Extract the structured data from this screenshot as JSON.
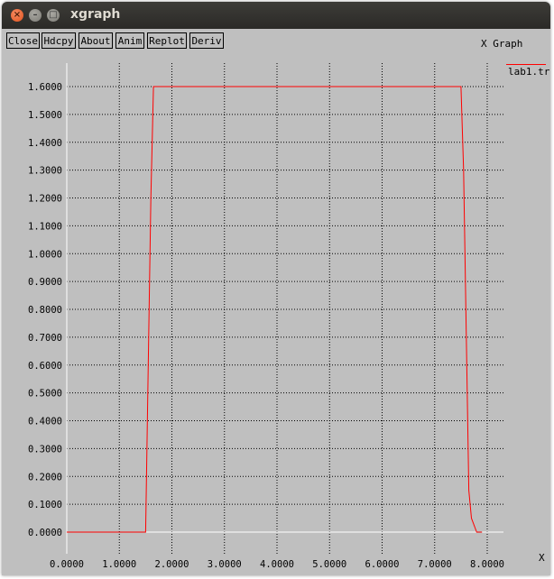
{
  "window": {
    "title": "xgraph",
    "close_glyph": "×",
    "min_glyph": "–",
    "max_glyph": "□"
  },
  "toolbar": {
    "buttons": [
      "Close",
      "Hdcpy",
      "About",
      "Anim",
      "Replot",
      "Deriv"
    ]
  },
  "graph": {
    "title": "X Graph",
    "x_axis_name": "X",
    "legend": [
      {
        "name": "lab1.tr",
        "color": "#ff0000"
      }
    ]
  },
  "chart_data": {
    "type": "line",
    "title": "X Graph",
    "xlabel": "X",
    "ylabel": "",
    "xlim": [
      0,
      8
    ],
    "ylim": [
      0,
      1.6
    ],
    "grid": true,
    "legend_position": "top-right",
    "x_ticks": [
      "0.0000",
      "1.0000",
      "2.0000",
      "3.0000",
      "4.0000",
      "5.0000",
      "6.0000",
      "7.0000",
      "8.0000"
    ],
    "y_ticks": [
      "0.0000",
      "0.1000",
      "0.2000",
      "0.3000",
      "0.4000",
      "0.5000",
      "0.6000",
      "0.7000",
      "0.8000",
      "0.9000",
      "1.0000",
      "1.1000",
      "1.2000",
      "1.3000",
      "1.4000",
      "1.5000",
      "1.6000"
    ],
    "series": [
      {
        "name": "lab1.tr",
        "color": "#ff0000",
        "x": [
          0.0,
          1.5,
          1.6,
          1.65,
          7.5,
          7.55,
          7.65,
          7.7,
          7.8,
          7.9
        ],
        "y": [
          0.0,
          0.0,
          1.2,
          1.6,
          1.6,
          1.3,
          0.15,
          0.05,
          0.0,
          0.0
        ]
      }
    ]
  }
}
